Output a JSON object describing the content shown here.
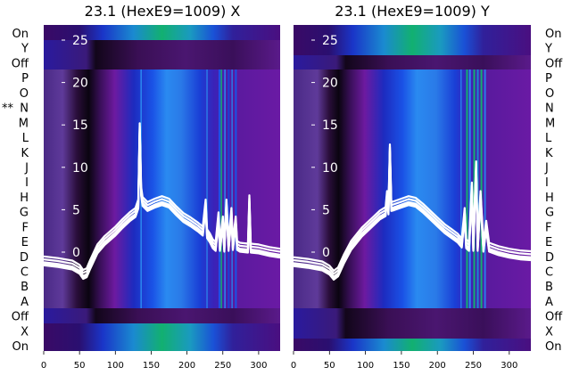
{
  "chart_data": [
    {
      "type": "heatmap",
      "title": "23.1 (HexE9=1009) X",
      "x_ticks": [
        0,
        50,
        100,
        150,
        200,
        250,
        300
      ],
      "xlim": [
        0,
        330
      ],
      "y_overlay_ticks": [
        0,
        5,
        10,
        15,
        20,
        25
      ],
      "y_overlay_range": [
        -3,
        28
      ],
      "row_labels": [
        "On",
        "Y",
        "Off",
        "P",
        "O",
        "N",
        "M",
        "L",
        "K",
        "J",
        "I",
        "H",
        "G",
        "F",
        "E",
        "D",
        "C",
        "B",
        "A",
        "Off",
        "X",
        "On"
      ],
      "marked_row": "N",
      "marker_text": "**",
      "trace_points": [
        [
          0,
          -1.2
        ],
        [
          20,
          -1.4
        ],
        [
          40,
          -1.7
        ],
        [
          50,
          -2.2
        ],
        [
          55,
          -2.8
        ],
        [
          60,
          -2.6
        ],
        [
          65,
          -1.6
        ],
        [
          75,
          0.2
        ],
        [
          85,
          1.2
        ],
        [
          100,
          2.3
        ],
        [
          110,
          3.2
        ],
        [
          120,
          4.0
        ],
        [
          128,
          4.5
        ],
        [
          132,
          5.5
        ],
        [
          134,
          14.5
        ],
        [
          136,
          7
        ],
        [
          138,
          5.8
        ],
        [
          145,
          5.2
        ],
        [
          155,
          5.6
        ],
        [
          165,
          5.9
        ],
        [
          175,
          5.6
        ],
        [
          185,
          4.7
        ],
        [
          195,
          3.9
        ],
        [
          205,
          3.4
        ],
        [
          215,
          2.8
        ],
        [
          222,
          2.3
        ],
        [
          226,
          5.5
        ],
        [
          228,
          2.0
        ],
        [
          232,
          1.5
        ],
        [
          236,
          0.8
        ],
        [
          240,
          0.5
        ],
        [
          244,
          4.0
        ],
        [
          246,
          0.5
        ],
        [
          250,
          3.5
        ],
        [
          252,
          0.4
        ],
        [
          255,
          5.5
        ],
        [
          258,
          0.5
        ],
        [
          262,
          4.5
        ],
        [
          264,
          0.6
        ],
        [
          268,
          3.5
        ],
        [
          270,
          0.6
        ],
        [
          274,
          0.4
        ],
        [
          285,
          0.3
        ],
        [
          287,
          6.0
        ],
        [
          289,
          0.3
        ],
        [
          300,
          0.2
        ],
        [
          315,
          -0.1
        ],
        [
          330,
          -0.3
        ]
      ]
    },
    {
      "type": "heatmap",
      "title": "23.1 (HexE9=1009) Y",
      "x_ticks": [
        0,
        50,
        100,
        150,
        200,
        250,
        300
      ],
      "xlim": [
        0,
        330
      ],
      "y_overlay_ticks": [
        0,
        5,
        10,
        15,
        20,
        25
      ],
      "y_overlay_range": [
        -3,
        28
      ],
      "row_labels": [
        "On",
        "Y",
        "Off",
        "P",
        "O",
        "N",
        "M",
        "L",
        "K",
        "J",
        "I",
        "H",
        "G",
        "F",
        "E",
        "D",
        "C",
        "B",
        "A",
        "Off",
        "X",
        "On"
      ],
      "trace_points": [
        [
          0,
          -1.3
        ],
        [
          20,
          -1.5
        ],
        [
          40,
          -1.8
        ],
        [
          50,
          -2.3
        ],
        [
          56,
          -2.9
        ],
        [
          62,
          -2.5
        ],
        [
          70,
          -1.0
        ],
        [
          80,
          0.6
        ],
        [
          95,
          2.2
        ],
        [
          110,
          3.4
        ],
        [
          120,
          4.2
        ],
        [
          128,
          4.6
        ],
        [
          130,
          6.5
        ],
        [
          132,
          4.8
        ],
        [
          134,
          12.0
        ],
        [
          136,
          5.2
        ],
        [
          140,
          5.3
        ],
        [
          150,
          5.6
        ],
        [
          160,
          5.9
        ],
        [
          170,
          5.7
        ],
        [
          180,
          5.0
        ],
        [
          190,
          4.2
        ],
        [
          200,
          3.4
        ],
        [
          210,
          2.6
        ],
        [
          220,
          2.0
        ],
        [
          228,
          1.5
        ],
        [
          234,
          0.9
        ],
        [
          238,
          4.5
        ],
        [
          240,
          0.8
        ],
        [
          244,
          0.5
        ],
        [
          248,
          7.5
        ],
        [
          250,
          0.5
        ],
        [
          254,
          10.0
        ],
        [
          256,
          0.5
        ],
        [
          260,
          6.5
        ],
        [
          264,
          0.4
        ],
        [
          268,
          3.0
        ],
        [
          272,
          0.4
        ],
        [
          285,
          0.0
        ],
        [
          300,
          -0.3
        ],
        [
          315,
          -0.5
        ],
        [
          330,
          -0.6
        ]
      ]
    }
  ]
}
